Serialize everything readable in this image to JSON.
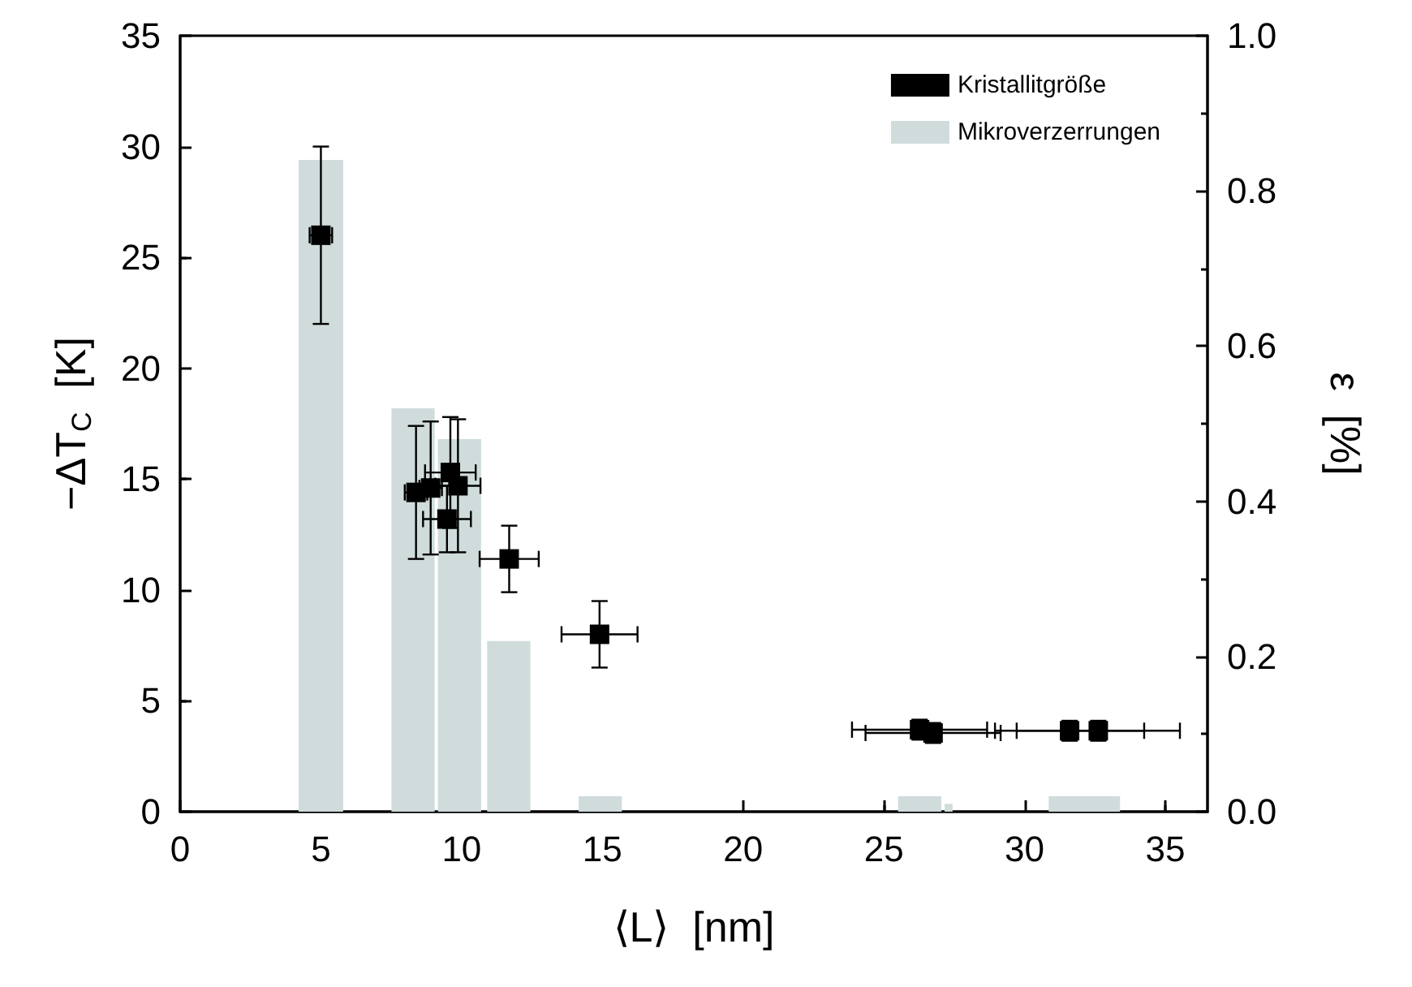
{
  "chart_data": {
    "type": "scatter",
    "xlabel": "⟨L⟩  [nm]",
    "ylabel": "−ΔT$_{C}$  [K]",
    "y2label": "ε  [%]",
    "xlim": [
      0,
      36.5
    ],
    "xticks": [
      0,
      5,
      10,
      15,
      20,
      25,
      30,
      35
    ],
    "ylim": [
      0,
      35
    ],
    "yticks": [
      0,
      5,
      10,
      15,
      20,
      25,
      30,
      35
    ],
    "y2lim": [
      0,
      1
    ],
    "y2ticks": [
      {
        "value": 0,
        "label": "0.0"
      },
      0.2,
      0.4,
      0.6,
      0.8,
      {
        "value": 1,
        "label": "1.0"
      }
    ],
    "marker": "square",
    "grid": false,
    "legend": "top right",
    "series": [
      {
        "name": "Kristallitgröße",
        "color": "#000000",
        "x": [
          5.0,
          8.33,
          8.38,
          8.9,
          9.6,
          9.87,
          9.48,
          11.69,
          14.9,
          26.27,
          26.75,
          31.6,
          32.62
        ],
        "values": [
          26,
          null,
          14.4,
          14.6,
          15.3,
          14.7,
          13.2,
          11.4,
          8.0,
          3.7,
          3.55,
          3.65,
          3.65
        ],
        "errors": [
          4,
          null,
          3,
          3,
          2.5,
          3,
          1.5,
          1.5,
          1.5,
          0.45,
          0.45,
          0.45,
          0.45
        ],
        "xerrors": [
          0.4,
          null,
          0.4,
          0.4,
          0.9,
          0.8,
          0.85,
          1.05,
          1.35,
          2.4,
          2.4,
          2.65,
          2.9
        ]
      },
      {
        "name": "Mikroverzerrungen",
        "type": "histogram",
        "axis": "y2",
        "color": "#d0dcdc",
        "bins": [
          4.15,
          5.85,
          7.45,
          9.1,
          10.75,
          10.85,
          12.5,
          14.1,
          15.75,
          25.45,
          27.1,
          27.5,
          30.8,
          33.45
        ],
        "values": [
          0.84,
          0,
          0.52,
          0.48,
          0,
          0.22,
          0,
          0.02,
          0,
          0.02,
          0.01,
          0,
          0.02
        ]
      }
    ]
  }
}
